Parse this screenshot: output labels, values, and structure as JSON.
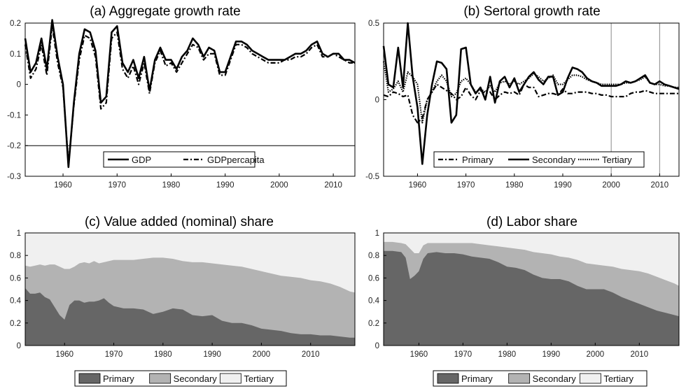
{
  "chart_data": [
    {
      "type": "line",
      "title": "(a) Aggregate growth rate",
      "xlim": [
        1953,
        2014
      ],
      "ylim": [
        -0.3,
        0.2
      ],
      "xticks": [
        "1960",
        "1970",
        "1980",
        "1990",
        "2000",
        "2010"
      ],
      "yticks": [
        "0.2",
        "0.1",
        "0",
        "-0.1",
        "-0.2",
        "-0.3"
      ],
      "reference_line": -0.2,
      "legend_position": "bottom",
      "x": [
        1953,
        1954,
        1955,
        1956,
        1957,
        1958,
        1959,
        1960,
        1961,
        1962,
        1963,
        1964,
        1965,
        1966,
        1967,
        1968,
        1969,
        1970,
        1971,
        1972,
        1973,
        1974,
        1975,
        1976,
        1977,
        1978,
        1979,
        1980,
        1981,
        1982,
        1983,
        1984,
        1985,
        1986,
        1987,
        1988,
        1989,
        1990,
        1991,
        1992,
        1993,
        1994,
        1995,
        1996,
        1997,
        1998,
        1999,
        2000,
        2001,
        2002,
        2003,
        2004,
        2005,
        2006,
        2007,
        2008,
        2009,
        2010,
        2011,
        2012,
        2013,
        2014
      ],
      "series": [
        {
          "name": "GDP",
          "style": "solid",
          "values": [
            0.15,
            0.04,
            0.07,
            0.15,
            0.05,
            0.21,
            0.09,
            0.0,
            -0.27,
            -0.06,
            0.1,
            0.18,
            0.17,
            0.11,
            -0.06,
            -0.04,
            0.17,
            0.19,
            0.07,
            0.04,
            0.08,
            0.02,
            0.09,
            -0.02,
            0.08,
            0.12,
            0.08,
            0.08,
            0.05,
            0.09,
            0.11,
            0.15,
            0.13,
            0.09,
            0.12,
            0.11,
            0.04,
            0.04,
            0.09,
            0.14,
            0.14,
            0.13,
            0.11,
            0.1,
            0.09,
            0.08,
            0.08,
            0.08,
            0.08,
            0.09,
            0.1,
            0.1,
            0.11,
            0.13,
            0.14,
            0.1,
            0.09,
            0.1,
            0.1,
            0.08,
            0.08,
            0.07
          ]
        },
        {
          "name": "GDPpercapita",
          "style": "dashdot",
          "values": [
            0.13,
            0.02,
            0.05,
            0.13,
            0.03,
            0.19,
            0.07,
            -0.01,
            -0.26,
            -0.07,
            0.08,
            0.16,
            0.15,
            0.09,
            -0.08,
            -0.06,
            0.15,
            0.17,
            0.05,
            0.02,
            0.06,
            0.0,
            0.07,
            -0.03,
            0.07,
            0.11,
            0.06,
            0.07,
            0.04,
            0.07,
            0.1,
            0.13,
            0.12,
            0.08,
            0.1,
            0.1,
            0.03,
            0.03,
            0.08,
            0.13,
            0.13,
            0.12,
            0.1,
            0.09,
            0.08,
            0.07,
            0.07,
            0.07,
            0.08,
            0.08,
            0.09,
            0.09,
            0.1,
            0.12,
            0.13,
            0.09,
            0.09,
            0.1,
            0.09,
            0.08,
            0.07,
            0.07
          ]
        }
      ]
    },
    {
      "type": "line",
      "title": "(b) Sertoral growth rate",
      "xlim": [
        1953,
        2014
      ],
      "ylim": [
        -0.5,
        0.5
      ],
      "xticks": [
        "1960",
        "1970",
        "1980",
        "1990",
        "2000",
        "2010"
      ],
      "yticks": [
        "0.5",
        "0",
        "-0.5"
      ],
      "vertical_lines": [
        2000,
        2010
      ],
      "legend_position": "bottom",
      "x": [
        1953,
        1954,
        1955,
        1956,
        1957,
        1958,
        1959,
        1960,
        1961,
        1962,
        1963,
        1964,
        1965,
        1966,
        1967,
        1968,
        1969,
        1970,
        1971,
        1972,
        1973,
        1974,
        1975,
        1976,
        1977,
        1978,
        1979,
        1980,
        1981,
        1982,
        1983,
        1984,
        1985,
        1986,
        1987,
        1988,
        1989,
        1990,
        1991,
        1992,
        1993,
        1994,
        1995,
        1996,
        1997,
        1998,
        1999,
        2000,
        2001,
        2002,
        2003,
        2004,
        2005,
        2006,
        2007,
        2008,
        2009,
        2010,
        2011,
        2012,
        2013,
        2014
      ],
      "series": [
        {
          "name": "Primary",
          "style": "dashdot",
          "values": [
            0.03,
            0.02,
            0.05,
            0.04,
            0.02,
            0.03,
            -0.1,
            -0.15,
            -0.12,
            0.0,
            0.05,
            0.1,
            0.08,
            0.06,
            0.04,
            0.0,
            0.02,
            0.08,
            0.03,
            0.0,
            0.06,
            0.04,
            0.05,
            0.0,
            0.03,
            0.05,
            0.04,
            0.05,
            0.03,
            0.1,
            0.08,
            0.08,
            0.02,
            0.03,
            0.04,
            0.04,
            0.03,
            0.07,
            0.04,
            0.04,
            0.05,
            0.05,
            0.05,
            0.04,
            0.04,
            0.03,
            0.03,
            0.02,
            0.02,
            0.02,
            0.02,
            0.04,
            0.05,
            0.05,
            0.06,
            0.05,
            0.04,
            0.04,
            0.04,
            0.04,
            0.04,
            0.04
          ]
        },
        {
          "name": "Secondary",
          "style": "solid",
          "values": [
            0.35,
            0.1,
            0.08,
            0.34,
            0.08,
            0.5,
            0.15,
            -0.05,
            -0.42,
            -0.1,
            0.1,
            0.25,
            0.24,
            0.2,
            -0.15,
            -0.1,
            0.33,
            0.34,
            0.1,
            0.04,
            0.08,
            0.0,
            0.15,
            -0.02,
            0.12,
            0.15,
            0.08,
            0.14,
            0.05,
            0.1,
            0.15,
            0.18,
            0.13,
            0.1,
            0.15,
            0.15,
            0.03,
            0.05,
            0.14,
            0.21,
            0.2,
            0.18,
            0.14,
            0.12,
            0.11,
            0.09,
            0.09,
            0.09,
            0.09,
            0.1,
            0.12,
            0.11,
            0.12,
            0.14,
            0.16,
            0.11,
            0.1,
            0.12,
            0.1,
            0.09,
            0.08,
            0.07
          ]
        },
        {
          "name": "Tertiary",
          "style": "dotted",
          "values": [
            0.25,
            0.05,
            0.07,
            0.12,
            0.05,
            0.18,
            0.15,
            0.1,
            -0.15,
            0.0,
            0.05,
            0.12,
            0.16,
            0.12,
            0.02,
            0.04,
            0.12,
            0.14,
            0.1,
            0.05,
            0.07,
            0.05,
            0.09,
            0.05,
            0.11,
            0.12,
            0.1,
            0.12,
            0.1,
            0.12,
            0.14,
            0.17,
            0.15,
            0.12,
            0.14,
            0.16,
            0.1,
            0.1,
            0.13,
            0.16,
            0.16,
            0.15,
            0.13,
            0.12,
            0.11,
            0.1,
            0.1,
            0.1,
            0.1,
            0.1,
            0.11,
            0.11,
            0.12,
            0.13,
            0.15,
            0.11,
            0.1,
            0.1,
            0.09,
            0.09,
            0.08,
            0.08
          ]
        }
      ]
    },
    {
      "type": "area",
      "title": "(c) Value added (nominal) share",
      "xlim": [
        1952,
        2019
      ],
      "ylim": [
        0,
        1
      ],
      "xticks": [
        "1960",
        "1970",
        "1980",
        "1990",
        "2000",
        "2010"
      ],
      "yticks": [
        "1",
        "0.8",
        "0.6",
        "0.4",
        "0.2",
        "0"
      ],
      "legend_position": "bottom",
      "x": [
        1952,
        1953,
        1954,
        1955,
        1956,
        1957,
        1958,
        1959,
        1960,
        1961,
        1962,
        1963,
        1964,
        1965,
        1966,
        1967,
        1968,
        1969,
        1970,
        1972,
        1974,
        1976,
        1978,
        1980,
        1982,
        1984,
        1986,
        1988,
        1990,
        1992,
        1994,
        1996,
        1998,
        2000,
        2002,
        2004,
        2006,
        2008,
        2010,
        2012,
        2014,
        2016,
        2018,
        2019
      ],
      "series": [
        {
          "name": "Primary",
          "stacked_values": [
            0.51,
            0.46,
            0.46,
            0.47,
            0.43,
            0.41,
            0.34,
            0.27,
            0.23,
            0.36,
            0.4,
            0.4,
            0.38,
            0.39,
            0.39,
            0.4,
            0.42,
            0.38,
            0.35,
            0.33,
            0.33,
            0.32,
            0.28,
            0.3,
            0.33,
            0.32,
            0.27,
            0.26,
            0.27,
            0.22,
            0.2,
            0.2,
            0.18,
            0.15,
            0.14,
            0.13,
            0.11,
            0.1,
            0.1,
            0.09,
            0.09,
            0.08,
            0.07,
            0.07
          ]
        },
        {
          "name": "Secondary",
          "stacked_values": [
            0.71,
            0.7,
            0.71,
            0.72,
            0.71,
            0.72,
            0.72,
            0.7,
            0.68,
            0.68,
            0.7,
            0.73,
            0.74,
            0.73,
            0.75,
            0.73,
            0.74,
            0.75,
            0.76,
            0.76,
            0.76,
            0.77,
            0.78,
            0.78,
            0.77,
            0.75,
            0.74,
            0.74,
            0.73,
            0.72,
            0.71,
            0.7,
            0.68,
            0.66,
            0.64,
            0.62,
            0.61,
            0.6,
            0.58,
            0.57,
            0.55,
            0.52,
            0.48,
            0.47
          ]
        },
        {
          "name": "Tertiary",
          "stacked_values": [
            1,
            1,
            1,
            1,
            1,
            1,
            1,
            1,
            1,
            1,
            1,
            1,
            1,
            1,
            1,
            1,
            1,
            1,
            1,
            1,
            1,
            1,
            1,
            1,
            1,
            1,
            1,
            1,
            1,
            1,
            1,
            1,
            1,
            1,
            1,
            1,
            1,
            1,
            1,
            1,
            1,
            1,
            1,
            1
          ]
        }
      ]
    },
    {
      "type": "area",
      "title": "(d) Labor share",
      "xlim": [
        1952,
        2019
      ],
      "ylim": [
        0,
        1
      ],
      "xticks": [
        "1960",
        "1970",
        "1980",
        "1990",
        "2000",
        "2010"
      ],
      "yticks": [
        "1",
        "0.8",
        "0.6",
        "0.4",
        "0.2",
        "0"
      ],
      "legend_position": "bottom",
      "x": [
        1952,
        1954,
        1956,
        1957,
        1958,
        1959,
        1960,
        1961,
        1962,
        1964,
        1966,
        1968,
        1970,
        1972,
        1974,
        1976,
        1978,
        1980,
        1982,
        1984,
        1986,
        1988,
        1990,
        1992,
        1994,
        1996,
        1998,
        2000,
        2002,
        2004,
        2006,
        2008,
        2010,
        2012,
        2014,
        2016,
        2018,
        2019
      ],
      "series": [
        {
          "name": "Primary",
          "stacked_values": [
            0.84,
            0.84,
            0.83,
            0.78,
            0.59,
            0.62,
            0.66,
            0.77,
            0.82,
            0.83,
            0.82,
            0.82,
            0.81,
            0.79,
            0.78,
            0.77,
            0.74,
            0.7,
            0.69,
            0.67,
            0.63,
            0.6,
            0.59,
            0.59,
            0.57,
            0.53,
            0.5,
            0.5,
            0.5,
            0.47,
            0.43,
            0.4,
            0.37,
            0.34,
            0.31,
            0.29,
            0.27,
            0.26
          ]
        },
        {
          "name": "Secondary",
          "stacked_values": [
            0.92,
            0.92,
            0.91,
            0.9,
            0.86,
            0.82,
            0.82,
            0.89,
            0.91,
            0.91,
            0.91,
            0.91,
            0.91,
            0.91,
            0.9,
            0.89,
            0.88,
            0.87,
            0.86,
            0.85,
            0.83,
            0.82,
            0.81,
            0.79,
            0.78,
            0.76,
            0.73,
            0.72,
            0.71,
            0.7,
            0.68,
            0.67,
            0.66,
            0.64,
            0.61,
            0.58,
            0.55,
            0.53
          ]
        },
        {
          "name": "Tertiary",
          "stacked_values": [
            1,
            1,
            1,
            1,
            1,
            1,
            1,
            1,
            1,
            1,
            1,
            1,
            1,
            1,
            1,
            1,
            1,
            1,
            1,
            1,
            1,
            1,
            1,
            1,
            1,
            1,
            1,
            1,
            1,
            1,
            1,
            1,
            1,
            1,
            1,
            1,
            1,
            1
          ]
        }
      ]
    }
  ],
  "colors": {
    "axis": "#000000",
    "line": "#000000",
    "primary_fill": "#666666",
    "secondary_fill": "#b3b3b3",
    "tertiary_fill": "#f0f0f0"
  }
}
